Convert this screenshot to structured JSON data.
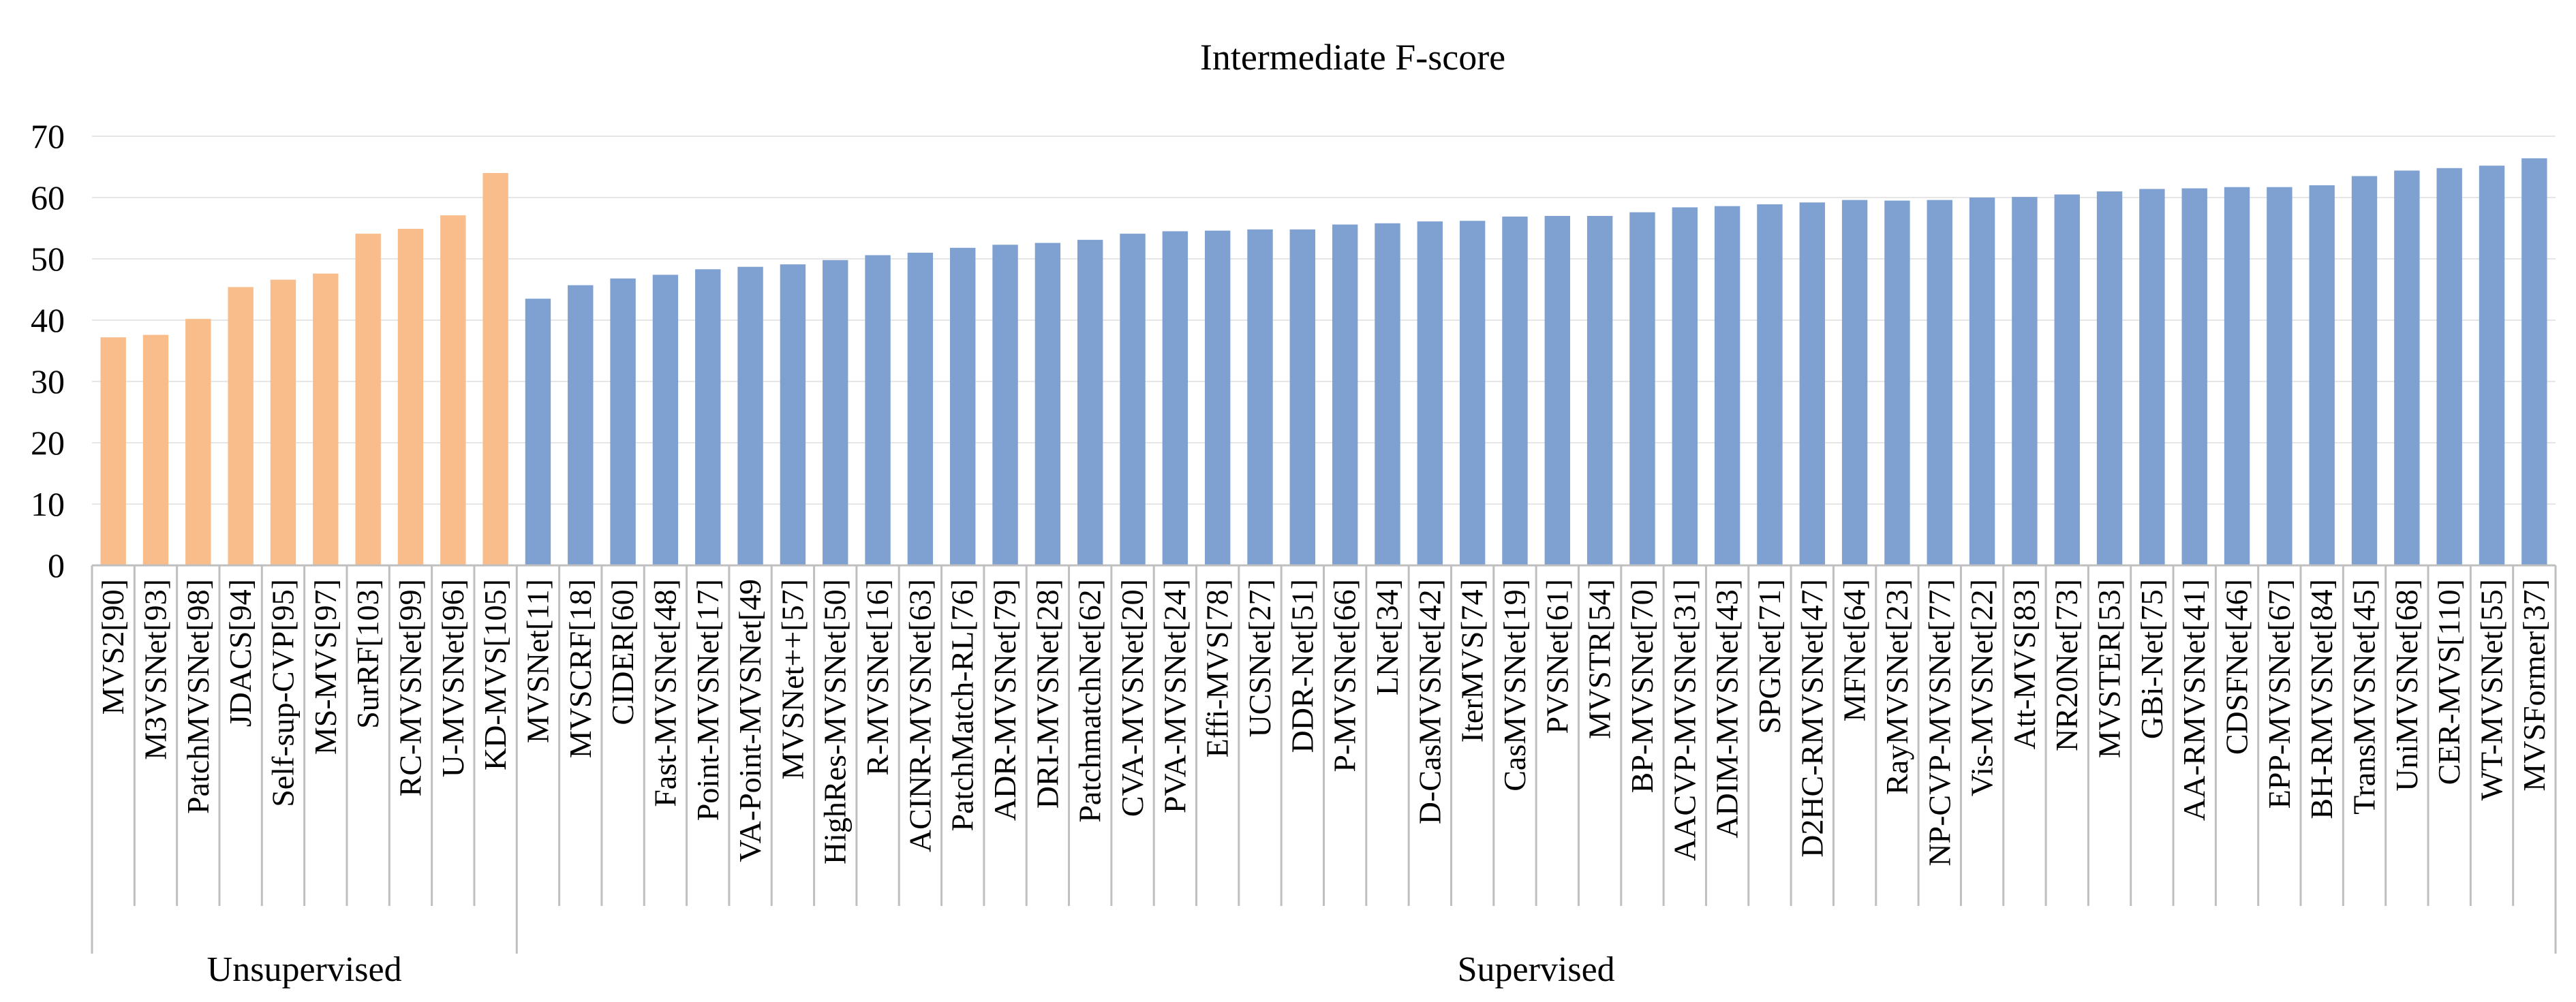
{
  "chart_data": {
    "type": "bar",
    "title": "Intermediate F-score",
    "xlabel": "",
    "ylabel": "",
    "ylim": [
      0,
      70
    ],
    "yticks": [
      0,
      10,
      20,
      30,
      40,
      50,
      60,
      70
    ],
    "grid": "horizontal",
    "legend": "none",
    "colors": {
      "Unsupervised": "#f8bd8b",
      "Supervised": "#7ea1d1",
      "axis": "#bfbfbf",
      "grid": "#e6e6e6"
    },
    "groups": [
      {
        "name": "Unsupervised",
        "categories": [
          "MVS2[90]",
          "M3VSNet[93]",
          "PatchMVSNet[98]",
          "JDACS[94]",
          "Self-sup-CVP[95]",
          "MS-MVS[97]",
          "SurRF[103]",
          "RC-MVSNet[99]",
          "U-MVSNet[96]",
          "KD-MVS[105]"
        ],
        "values": [
          37.2,
          37.6,
          40.2,
          45.4,
          46.6,
          47.6,
          54.1,
          54.9,
          57.1,
          64.0
        ]
      },
      {
        "name": "Supervised",
        "categories": [
          "MVSNet[11]",
          "MVSCRF[18]",
          "CIDER[60]",
          "Fast-MVSNet[48]",
          "Point-MVSNet[17]",
          "VA-Point-MVSNet[49",
          "MVSNet++[57]",
          "HighRes-MVSNet[50]",
          "R-MVSNet[16]",
          "ACINR-MVSNet[63]",
          "PatchMatch-RL[76]",
          "ADR-MVSNet[79]",
          "DRI-MVSNet[28]",
          "PatchmatchNet[62]",
          "CVA-MVSNet[20]",
          "PVA-MVSNet[24]",
          "Effi-MVS[78]",
          "UCSNet[27]",
          "DDR-Net[51]",
          "P-MVSNet[66]",
          "LNet[34]",
          "D-CasMVSNet[42]",
          "IterMVS[74]",
          "CasMVSNet[19]",
          "PVSNet[61]",
          "MVSTR[54]",
          "BP-MVSNet[70]",
          "AACVP-MVSNet[31]",
          "ADIM-MVSNet[43]",
          "SPGNet[71]",
          "D2HC-RMVSNet[47]",
          "MFNet[64]",
          "RayMVSNet[23]",
          "NP-CVP-MVSNet[77]",
          "Vis-MVSNet[22]",
          "Att-MVS[83]",
          "NR20Net[73]",
          "MVSTER[53]",
          "GBi-Net[75]",
          "AA-RMVSNet[41]",
          "CDSFNet[46]",
          "EPP-MVSNet[67]",
          "BH-RMVSNet[84]",
          "TransMVSNet[45]",
          "UniMVSNet[68]",
          "CER-MVS[110]",
          "WT-MVSNet[55]",
          "MVSFormer[37]"
        ],
        "values": [
          43.5,
          45.7,
          46.8,
          47.4,
          48.3,
          48.7,
          49.1,
          49.8,
          50.6,
          51.0,
          51.8,
          52.3,
          52.6,
          53.1,
          54.1,
          54.5,
          54.6,
          54.8,
          54.8,
          55.6,
          55.8,
          56.1,
          56.2,
          56.9,
          57.0,
          57.0,
          57.6,
          58.4,
          58.6,
          58.9,
          59.2,
          59.6,
          59.5,
          59.6,
          60.0,
          60.1,
          60.5,
          61.0,
          61.4,
          61.5,
          61.7,
          61.7,
          62.0,
          63.5,
          64.4,
          64.8,
          65.2,
          66.4
        ]
      }
    ]
  }
}
